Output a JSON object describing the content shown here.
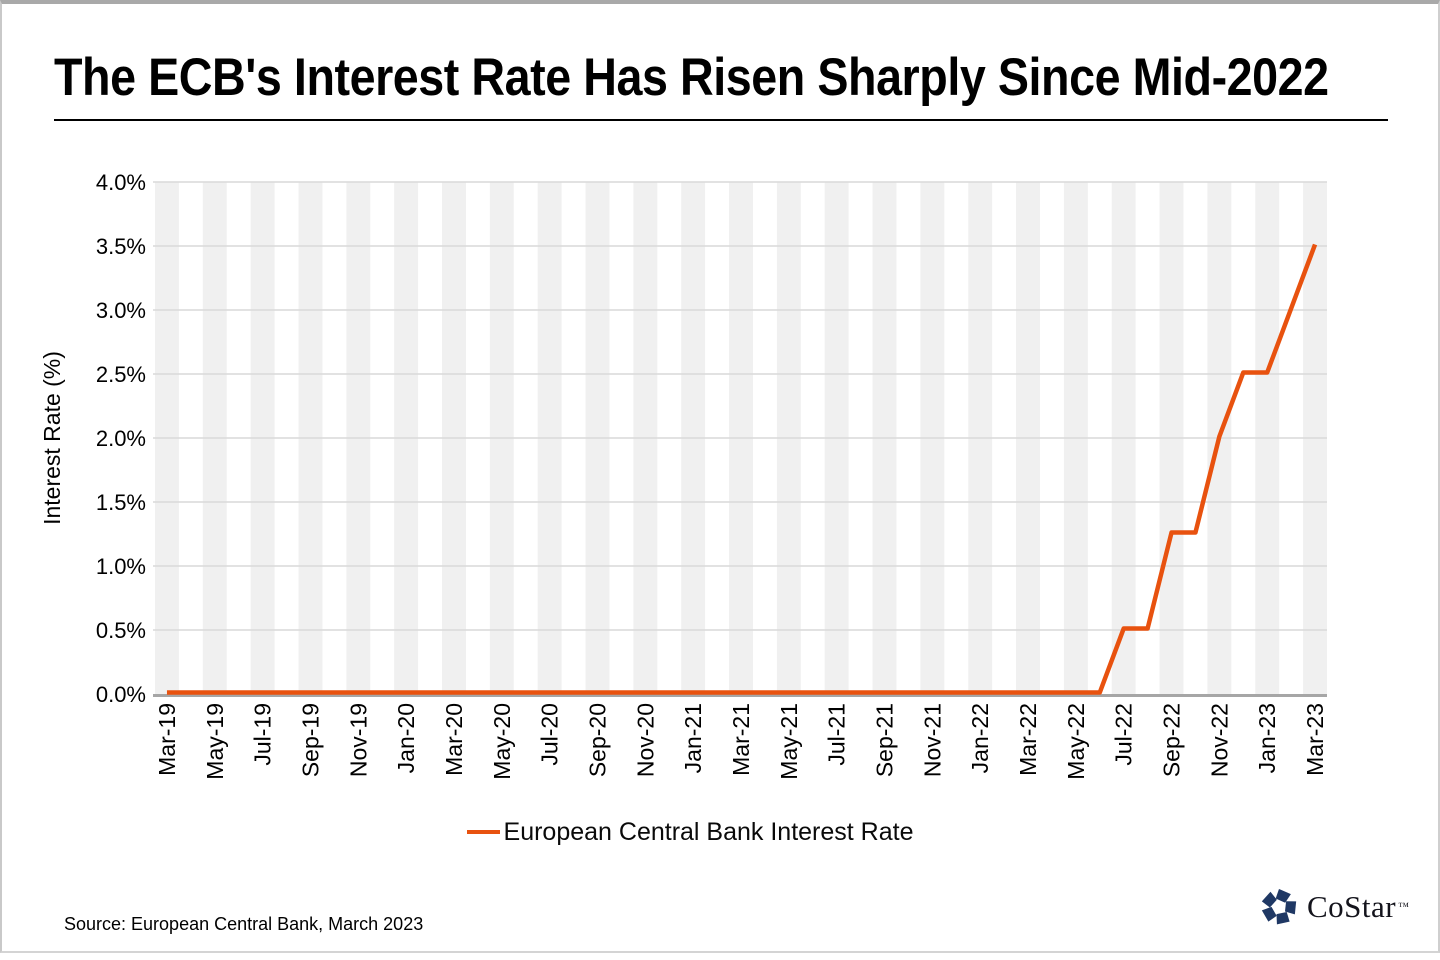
{
  "header": {
    "title": "The ECB's Interest Rate Has Risen Sharply Since Mid-2022"
  },
  "chart_data": {
    "type": "line",
    "title": "The ECB's Interest Rate Has Risen Sharply Since Mid-2022",
    "xlabel": "",
    "ylabel": "Interest Rate (%)",
    "ylim": [
      0,
      4
    ],
    "ytick_step_pct": 0.5,
    "ytick_labels": [
      "0.0%",
      "0.5%",
      "1.0%",
      "1.5%",
      "2.0%",
      "2.5%",
      "3.0%",
      "3.5%",
      "4.0%"
    ],
    "xtick_every": 2,
    "grid": "horizontal",
    "background_stripes": "alternating vertical light-gray per month",
    "legend_position": "bottom-center",
    "categories": [
      "Mar-19",
      "Apr-19",
      "May-19",
      "Jun-19",
      "Jul-19",
      "Aug-19",
      "Sep-19",
      "Oct-19",
      "Nov-19",
      "Dec-19",
      "Jan-20",
      "Feb-20",
      "Mar-20",
      "Apr-20",
      "May-20",
      "Jun-20",
      "Jul-20",
      "Aug-20",
      "Sep-20",
      "Oct-20",
      "Nov-20",
      "Dec-20",
      "Jan-21",
      "Feb-21",
      "Mar-21",
      "Apr-21",
      "May-21",
      "Jun-21",
      "Jul-21",
      "Aug-21",
      "Sep-21",
      "Oct-21",
      "Nov-21",
      "Dec-21",
      "Jan-22",
      "Feb-22",
      "Mar-22",
      "Apr-22",
      "May-22",
      "Jun-22",
      "Jul-22",
      "Aug-22",
      "Sep-22",
      "Oct-22",
      "Nov-22",
      "Dec-22",
      "Jan-23",
      "Feb-23",
      "Mar-23"
    ],
    "series": [
      {
        "name": "European Central Bank Interest Rate",
        "color": "#E8520F",
        "values": [
          0,
          0,
          0,
          0,
          0,
          0,
          0,
          0,
          0,
          0,
          0,
          0,
          0,
          0,
          0,
          0,
          0,
          0,
          0,
          0,
          0,
          0,
          0,
          0,
          0,
          0,
          0,
          0,
          0,
          0,
          0,
          0,
          0,
          0,
          0,
          0,
          0,
          0,
          0,
          0,
          0.5,
          0.5,
          1.25,
          1.25,
          2.0,
          2.5,
          2.5,
          3.0,
          3.5
        ]
      }
    ]
  },
  "legend": {
    "label": "European Central Bank Interest Rate"
  },
  "footer": {
    "source": "Source: European Central Bank, March 2023",
    "brand": "CoStar",
    "trademark": "™"
  },
  "colors": {
    "line": "#E8520F",
    "stripe": "#F0F0F0",
    "gridline": "#D9D9D9",
    "axis": "#A6A6A6",
    "logo_navy": "#1F3864"
  }
}
